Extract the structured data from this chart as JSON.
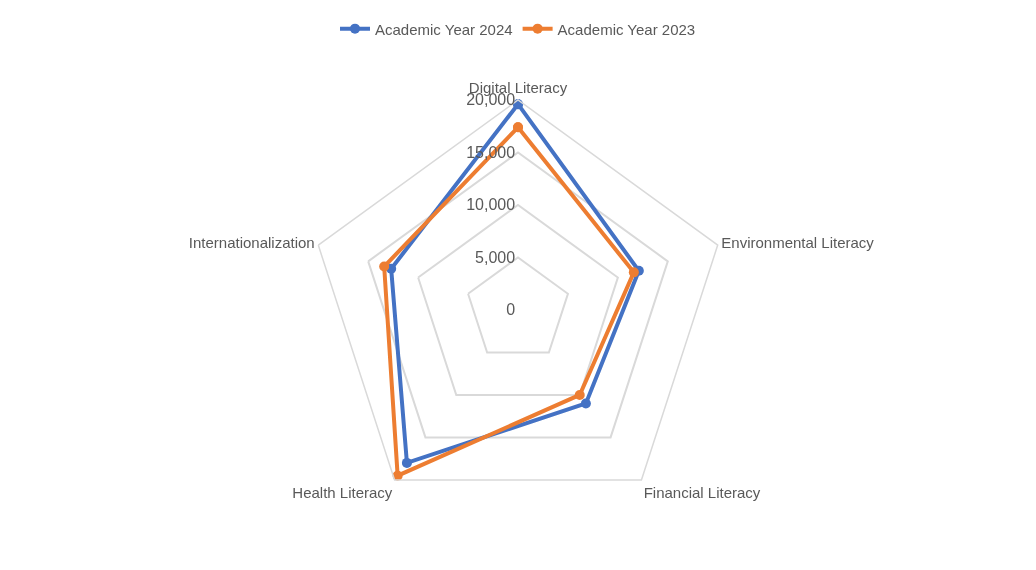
{
  "chart_data": {
    "type": "radar",
    "categories": [
      "Digital Literacy",
      "Environmental Literacy",
      "Financial Literacy",
      "Health Literacy",
      "Internationalization"
    ],
    "series": [
      {
        "name": "Academic Year 2024",
        "color": "#4472c4",
        "values": [
          19600,
          12100,
          11000,
          18000,
          12700
        ]
      },
      {
        "name": "Academic Year 2023",
        "color": "#ed7d31",
        "values": [
          17400,
          11600,
          10000,
          19500,
          13400
        ]
      }
    ],
    "ylim": [
      0,
      20000
    ],
    "yticks": [
      {
        "value": 0,
        "label": "0"
      },
      {
        "value": 5000,
        "label": "5,000"
      },
      {
        "value": 10000,
        "label": "10,000"
      },
      {
        "value": 15000,
        "label": "15,000"
      },
      {
        "value": 20000,
        "label": "20,000"
      }
    ],
    "grid": "y",
    "legend": "top",
    "marker": "circle",
    "line_style": "solid"
  }
}
